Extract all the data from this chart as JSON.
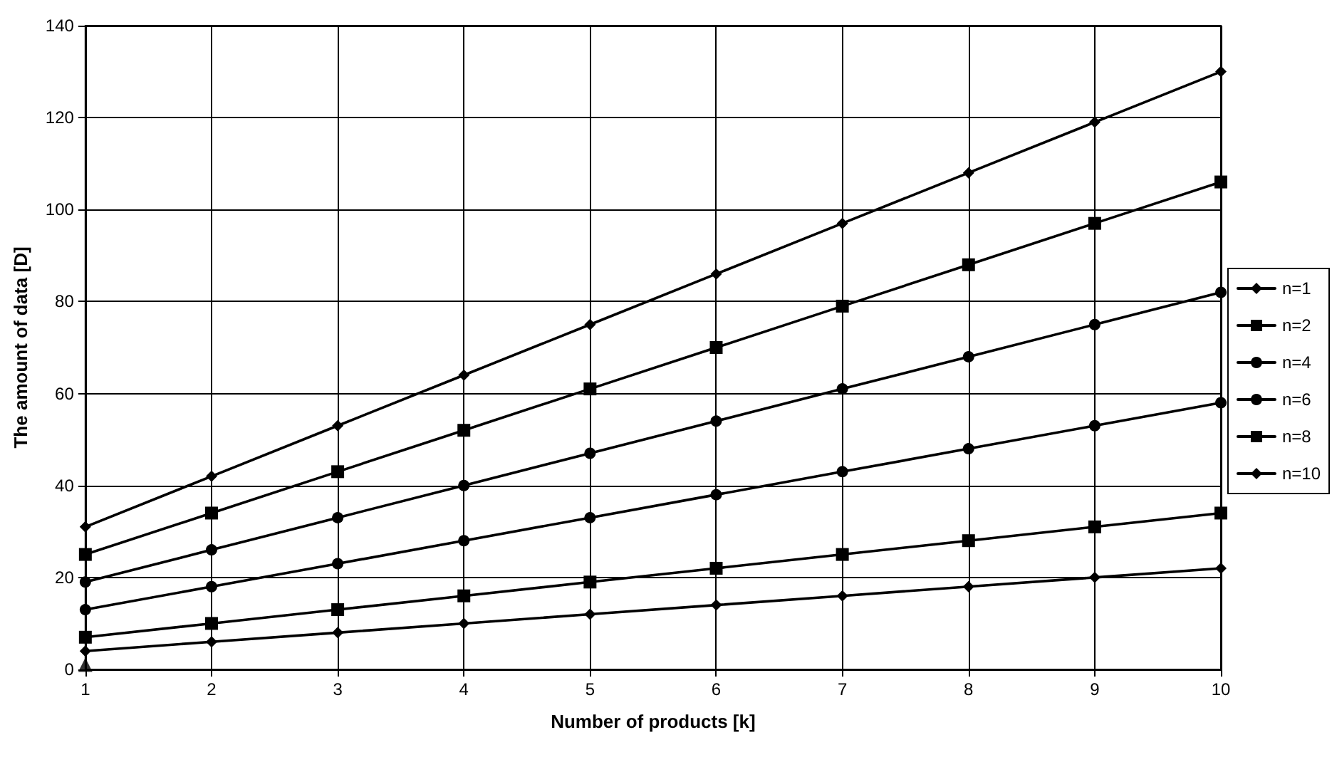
{
  "chart_data": {
    "type": "line",
    "xlabel": "Number of products [k]",
    "ylabel": "The amount of data [D]",
    "x": [
      1,
      2,
      3,
      4,
      5,
      6,
      7,
      8,
      9,
      10
    ],
    "xlim": [
      1,
      10
    ],
    "xticks": [
      1,
      2,
      3,
      4,
      5,
      6,
      7,
      8,
      9,
      10
    ],
    "ylim": [
      0,
      140
    ],
    "yticks": [
      0,
      20,
      40,
      60,
      80,
      100,
      120,
      140
    ],
    "grid": true,
    "legend": "right",
    "series": [
      {
        "name": "n=1",
        "color": "#000000",
        "marker": "diamond",
        "values": [
          4,
          6,
          8,
          10,
          12,
          14,
          16,
          18,
          20,
          22
        ]
      },
      {
        "name": "n=2",
        "color": "#000000",
        "marker": "square",
        "values": [
          7,
          10,
          13,
          16,
          19,
          22,
          25,
          28,
          31,
          34
        ]
      },
      {
        "name": "n=4",
        "color": "#000000",
        "marker": "circle",
        "values": [
          13,
          18,
          23,
          28,
          33,
          38,
          43,
          48,
          53,
          58
        ]
      },
      {
        "name": "n=6",
        "color": "#000000",
        "marker": "circle",
        "values": [
          19,
          26,
          33,
          40,
          47,
          54,
          61,
          68,
          75,
          82
        ]
      },
      {
        "name": "n=8",
        "color": "#000000",
        "marker": "square",
        "values": [
          25,
          34,
          43,
          52,
          61,
          70,
          79,
          88,
          97,
          106
        ]
      },
      {
        "name": "n=10",
        "color": "#000000",
        "marker": "diamond",
        "values": [
          31,
          42,
          53,
          64,
          75,
          86,
          97,
          108,
          119,
          130
        ]
      },
      {
        "type": "scatter",
        "color": "#000000",
        "marker": "triangle",
        "x": [
          1
        ],
        "values": [
          1
        ]
      }
    ]
  }
}
